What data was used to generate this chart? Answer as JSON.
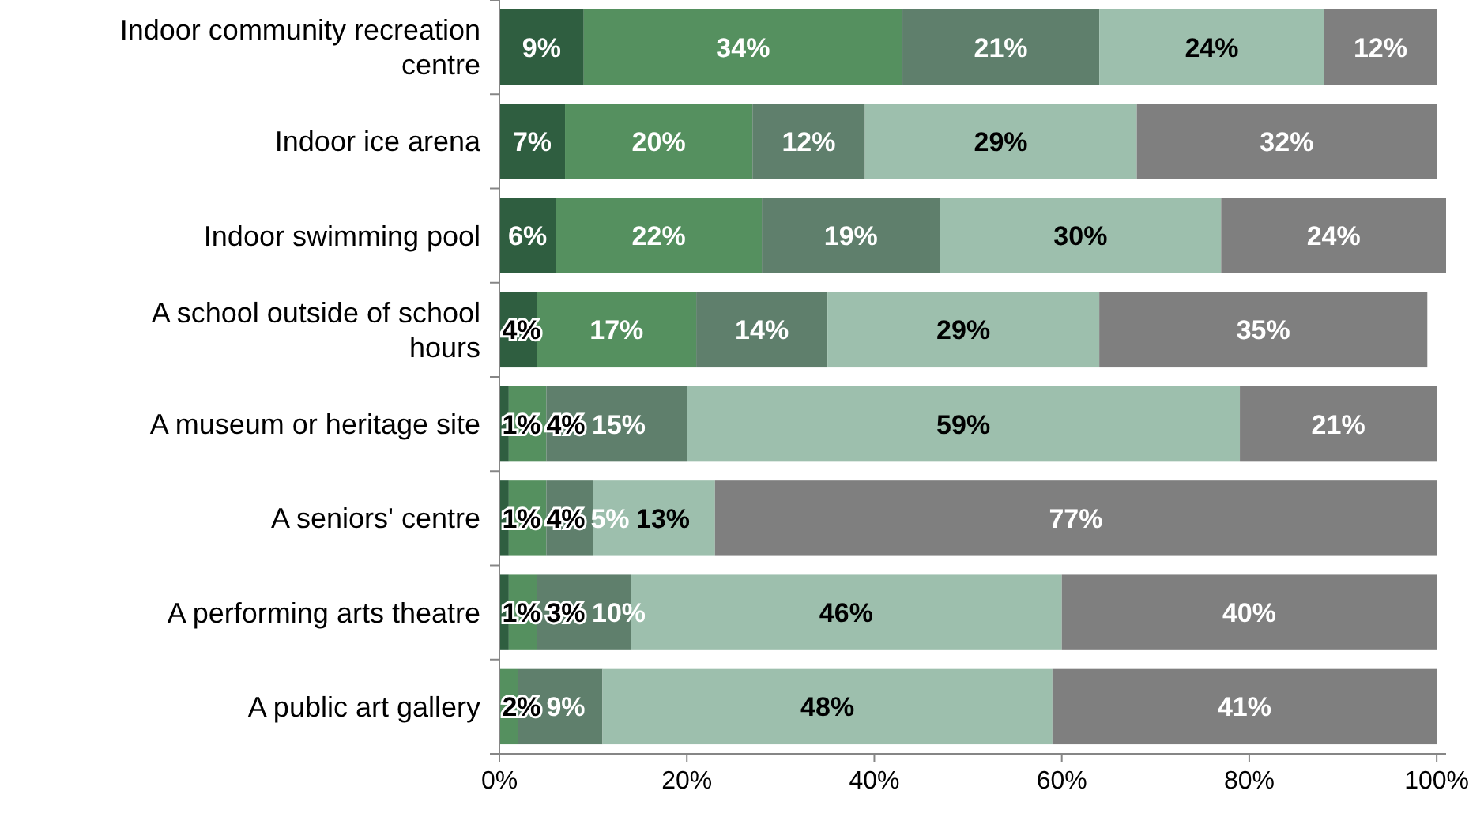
{
  "chart_data": {
    "type": "bar",
    "orientation": "horizontal",
    "stacked": true,
    "categories": [
      "Indoor community recreation centre",
      "Indoor ice arena",
      "Indoor swimming pool",
      "A school outside of school hours",
      "A museum or heritage site",
      "A seniors' centre",
      "A performing arts theatre",
      "A public art gallery"
    ],
    "series": [
      {
        "color": "#2f5e40",
        "values": [
          9,
          7,
          6,
          4,
          1,
          1,
          1,
          0
        ],
        "value_labels": [
          "9%",
          "7%",
          "6%",
          "4%",
          "1%",
          "1%",
          "1%",
          null
        ]
      },
      {
        "color": "#55905f",
        "values": [
          34,
          20,
          22,
          17,
          4,
          4,
          3,
          2
        ],
        "value_labels": [
          "34%",
          "20%",
          "22%",
          "17%",
          "4%",
          "4%",
          "3%",
          "2%"
        ]
      },
      {
        "color": "#5f7f6c",
        "values": [
          21,
          12,
          19,
          14,
          15,
          5,
          10,
          9
        ],
        "value_labels": [
          "21%",
          "12%",
          "19%",
          "14%",
          "15%",
          "5%",
          "10%",
          "9%"
        ]
      },
      {
        "color": "#9dbfad",
        "values": [
          24,
          29,
          30,
          29,
          59,
          13,
          46,
          48
        ],
        "value_labels": [
          "24%",
          "29%",
          "30%",
          "29%",
          "59%",
          "13%",
          "46%",
          "48%"
        ]
      },
      {
        "color": "#7f7f7f",
        "values": [
          12,
          32,
          24,
          35,
          21,
          77,
          40,
          41
        ],
        "value_labels": [
          "12%",
          "32%",
          "24%",
          "35%",
          "21%",
          "77%",
          "40%",
          "41%"
        ]
      }
    ],
    "xlim": [
      0,
      101
    ],
    "xticks": [
      {
        "value": 0,
        "label": "0%"
      },
      {
        "value": 20,
        "label": "20%"
      },
      {
        "value": 40,
        "label": "40%"
      },
      {
        "value": 60,
        "label": "60%"
      },
      {
        "value": 80,
        "label": "80%"
      },
      {
        "value": 100,
        "label": "100%"
      }
    ],
    "grid": false
  }
}
